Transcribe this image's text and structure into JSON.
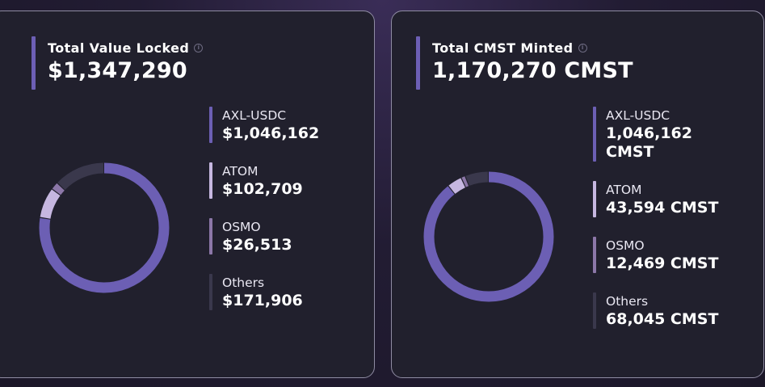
{
  "tvl_card": {
    "title": "Total Value Locked",
    "value": "$1,347,290",
    "legend": [
      {
        "label": "AXL-USDC",
        "value": "$1,046,162",
        "color": "#6c5fb4",
        "fraction": 0.7765
      },
      {
        "label": "ATOM",
        "value": "$102,709",
        "color": "#c6b7e0",
        "fraction": 0.0762
      },
      {
        "label": "OSMO",
        "value": "$26,513",
        "color": "#8c77a8",
        "fraction": 0.0197
      },
      {
        "label": "Others",
        "value": "$171,906",
        "color": "#3a384c",
        "fraction": 0.1276
      }
    ]
  },
  "cmst_card": {
    "title": "Total CMST Minted",
    "value": "1,170,270 CMST",
    "legend": [
      {
        "label": "AXL-USDC",
        "value": "1,046,162 CMST",
        "color": "#6c5fb4",
        "fraction": 0.894
      },
      {
        "label": "ATOM",
        "value": "43,594 CMST",
        "color": "#c6b7e0",
        "fraction": 0.0372
      },
      {
        "label": "OSMO",
        "value": "12,469 CMST",
        "color": "#8c77a8",
        "fraction": 0.0107
      },
      {
        "label": "Others",
        "value": "68,045 CMST",
        "color": "#3a384c",
        "fraction": 0.0581
      }
    ]
  }
}
